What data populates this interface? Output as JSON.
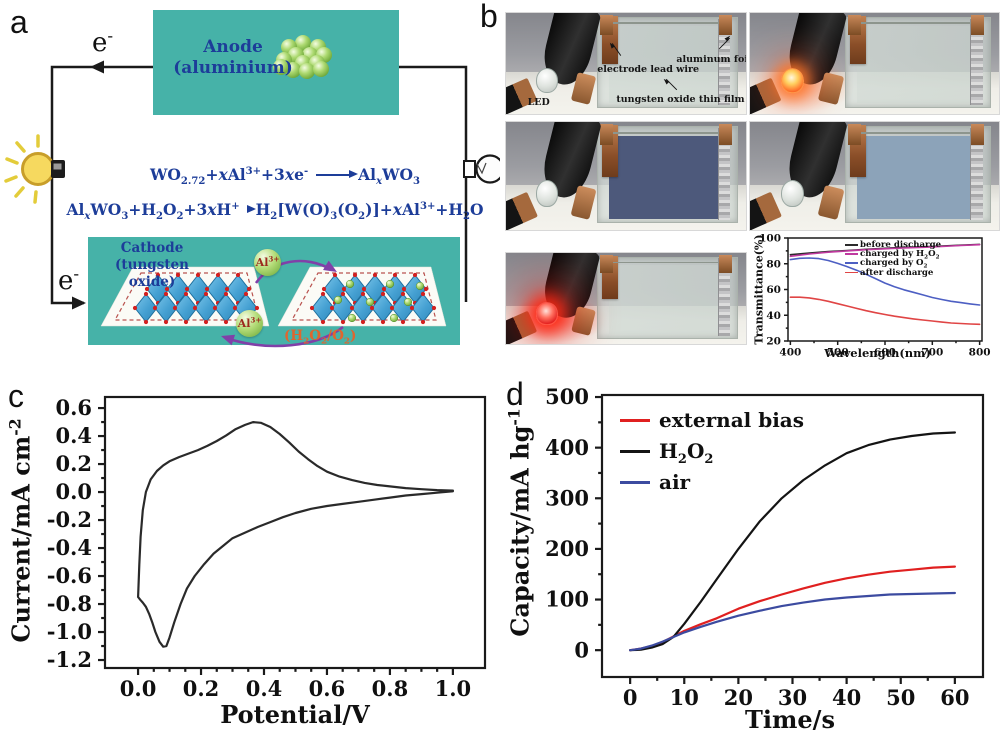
{
  "figure": {
    "panels": {
      "a": "a",
      "b": "b",
      "c": "c",
      "d": "d"
    }
  },
  "panel_a": {
    "electron_top": "e<sup>-</sup>",
    "electron_bottom": "e<sup>-</sup>",
    "anode_line1": "Anode",
    "anode_line2": "(aluminium)",
    "eq1_lhs": "WO<sub>2.72</sub>+<i>x</i>Al<sup>3+</sup>+3<i>x</i>e<sup>-</sup>",
    "eq1_rhs": "Al<sub><i>x</i></sub>WO<sub>3</sub>",
    "eq2_lhs": "Al<sub><i>x</i></sub>WO<sub>3</sub>+H<sub>2</sub>O<sub>2</sub>+3<i>x</i>H<sup>+</sup>",
    "eq2_rhs": "H<sub>2</sub>[W(O)<sub>3</sub>(O<sub>2</sub>)]+<i>x</i>Al<sup>3+</sup>+H<sub>2</sub>O",
    "cathode_line1": "Cathode",
    "cathode_line2": "(tungsten oxide)",
    "al_ion": "Al<sup>3+</sup>",
    "redox_couple": "(H<sub>2</sub>O<sub>2</sub>/O<sub>2</sub>)",
    "colors": {
      "box_teal": "#46b2a8",
      "text_blue": "#1d3d99",
      "arrow_purple": "#8040a8",
      "redox_orange": "#e0662e"
    }
  },
  "panel_b": {
    "photos": [
      {
        "name": "device initial, LED off",
        "led": "off",
        "film": "rgba(198,212,205,0.28)",
        "labels": {
          "led": "LED",
          "lead_wire": "electrode lead wire",
          "foil": "aluminum foil",
          "film": "tungsten oxide thin film"
        }
      },
      {
        "name": "device discharging, LED lit orange",
        "led": "orange",
        "film": "rgba(198,212,205,0.25)"
      },
      {
        "name": "device charged dark blue",
        "led": "off",
        "film": "#4d597b"
      },
      {
        "name": "device charged light blue",
        "led": "off",
        "film": "#8ca3b9"
      },
      {
        "name": "device after discharge, LED lit red",
        "led": "red",
        "film": "rgba(205,216,210,0.3)"
      }
    ]
  },
  "chart_data": [
    {
      "id": "transmittance",
      "type": "line",
      "xlabel": "Wavelength(nm)",
      "ylabel": "Transmittance(%)",
      "xlim": [
        395,
        805
      ],
      "ylim": [
        20,
        100
      ],
      "xticks": [
        400,
        500,
        600,
        700,
        800
      ],
      "yticks": [
        20,
        40,
        60,
        80,
        100
      ],
      "xminor": 50,
      "yminor": 10,
      "legend_position": "top-right",
      "series": [
        {
          "name": "before discharge",
          "label_html": "before discharge",
          "color": "#2b2b2b",
          "points": [
            [
              400,
              87
            ],
            [
              440,
              88.3
            ],
            [
              480,
              89.4
            ],
            [
              520,
              90.3
            ],
            [
              560,
              91.2
            ],
            [
              600,
              92
            ],
            [
              640,
              92.7
            ],
            [
              680,
              93.2
            ],
            [
              720,
              93.8
            ],
            [
              760,
              94.4
            ],
            [
              800,
              95
            ]
          ]
        },
        {
          "name": "charged by H2O2",
          "label_html": "charged by H<sub>2</sub>O<sub>2</sub>",
          "color": "#c0399f",
          "points": [
            [
              400,
              85.8
            ],
            [
              440,
              87.6
            ],
            [
              480,
              89
            ],
            [
              520,
              90
            ],
            [
              560,
              90.9
            ],
            [
              600,
              91.6
            ],
            [
              640,
              92.2
            ],
            [
              680,
              92.8
            ],
            [
              720,
              93.4
            ],
            [
              760,
              94.2
            ],
            [
              800,
              94.8
            ]
          ]
        },
        {
          "name": "charged by O2",
          "label_html": "charged by O<sub>2</sub>",
          "color": "#4d5fc3",
          "points": [
            [
              400,
              83.2
            ],
            [
              420,
              84.2
            ],
            [
              440,
              84.5
            ],
            [
              460,
              84
            ],
            [
              480,
              82.5
            ],
            [
              500,
              80.3
            ],
            [
              520,
              77.8
            ],
            [
              540,
              75
            ],
            [
              560,
              71.8
            ],
            [
              580,
              68.5
            ],
            [
              600,
              65
            ],
            [
              620,
              62.2
            ],
            [
              640,
              59.8
            ],
            [
              660,
              57.8
            ],
            [
              680,
              55.8
            ],
            [
              700,
              53.8
            ],
            [
              720,
              52.2
            ],
            [
              740,
              50.8
            ],
            [
              760,
              49.8
            ],
            [
              780,
              48.8
            ],
            [
              800,
              48
            ]
          ]
        },
        {
          "name": "after discharge",
          "label_html": "after discharge",
          "color": "#e04545",
          "points": [
            [
              400,
              54
            ],
            [
              420,
              54
            ],
            [
              440,
              53.5
            ],
            [
              460,
              52.3
            ],
            [
              480,
              50.8
            ],
            [
              500,
              49
            ],
            [
              520,
              47.2
            ],
            [
              540,
              45.3
            ],
            [
              560,
              43.5
            ],
            [
              580,
              42
            ],
            [
              600,
              40.6
            ],
            [
              620,
              39.3
            ],
            [
              640,
              38.2
            ],
            [
              660,
              37.2
            ],
            [
              680,
              36.3
            ],
            [
              700,
              35.5
            ],
            [
              720,
              34.7
            ],
            [
              740,
              34
            ],
            [
              760,
              33.6
            ],
            [
              780,
              33.2
            ],
            [
              800,
              33
            ]
          ]
        }
      ]
    },
    {
      "id": "cv",
      "type": "line",
      "xlabel": "Potential/V",
      "ylabel_html": "Current/mA cm<sup>-2</sup>",
      "xlim": [
        -0.105,
        1.102
      ],
      "ylim": [
        -1.257,
        0.679
      ],
      "xticks": [
        0.0,
        0.2,
        0.4,
        0.6,
        0.8,
        1.0
      ],
      "xtick_labels": [
        "0.0",
        "0.2",
        "0.4",
        "0.6",
        "0.8",
        "1.0"
      ],
      "yticks": [
        0.6,
        0.4,
        0.2,
        0.0,
        -0.2,
        -0.4,
        -0.6,
        -0.8,
        -1.0,
        -1.2
      ],
      "ytick_labels": [
        "0.6",
        "0.4",
        "0.2",
        "0.0",
        "-0.2",
        "-0.4",
        "-0.6",
        "-0.8",
        "-1.0",
        "-1.2"
      ],
      "xminor": 0.05,
      "yminor": 0.1,
      "series": [
        {
          "name": "cyclic voltammogram",
          "color": "#2a2a2a",
          "points": [
            [
              0.0,
              -0.75
            ],
            [
              0.004,
              -0.52
            ],
            [
              0.008,
              -0.32
            ],
            [
              0.015,
              -0.13
            ],
            [
              0.025,
              0.0
            ],
            [
              0.04,
              0.09
            ],
            [
              0.06,
              0.15
            ],
            [
              0.08,
              0.19
            ],
            [
              0.1,
              0.22
            ],
            [
              0.13,
              0.25
            ],
            [
              0.16,
              0.275
            ],
            [
              0.19,
              0.3
            ],
            [
              0.22,
              0.33
            ],
            [
              0.25,
              0.365
            ],
            [
              0.28,
              0.405
            ],
            [
              0.31,
              0.45
            ],
            [
              0.34,
              0.48
            ],
            [
              0.365,
              0.5
            ],
            [
              0.39,
              0.495
            ],
            [
              0.42,
              0.465
            ],
            [
              0.45,
              0.415
            ],
            [
              0.48,
              0.355
            ],
            [
              0.51,
              0.29
            ],
            [
              0.54,
              0.235
            ],
            [
              0.57,
              0.185
            ],
            [
              0.6,
              0.145
            ],
            [
              0.64,
              0.11
            ],
            [
              0.68,
              0.085
            ],
            [
              0.72,
              0.065
            ],
            [
              0.76,
              0.05
            ],
            [
              0.8,
              0.04
            ],
            [
              0.85,
              0.028
            ],
            [
              0.9,
              0.02
            ],
            [
              0.95,
              0.014
            ],
            [
              1.0,
              0.01
            ],
            [
              1.0,
              0.005
            ],
            [
              0.95,
              -0.005
            ],
            [
              0.9,
              -0.015
            ],
            [
              0.85,
              -0.025
            ],
            [
              0.8,
              -0.04
            ],
            [
              0.75,
              -0.055
            ],
            [
              0.7,
              -0.07
            ],
            [
              0.65,
              -0.085
            ],
            [
              0.6,
              -0.1
            ],
            [
              0.55,
              -0.12
            ],
            [
              0.5,
              -0.15
            ],
            [
              0.46,
              -0.18
            ],
            [
              0.42,
              -0.215
            ],
            [
              0.38,
              -0.25
            ],
            [
              0.34,
              -0.29
            ],
            [
              0.3,
              -0.33
            ],
            [
              0.27,
              -0.385
            ],
            [
              0.24,
              -0.44
            ],
            [
              0.21,
              -0.515
            ],
            [
              0.18,
              -0.6
            ],
            [
              0.155,
              -0.69
            ],
            [
              0.135,
              -0.8
            ],
            [
              0.115,
              -0.93
            ],
            [
              0.1,
              -1.04
            ],
            [
              0.09,
              -1.1
            ],
            [
              0.08,
              -1.105
            ],
            [
              0.068,
              -1.07
            ],
            [
              0.055,
              -1.0
            ],
            [
              0.045,
              -0.93
            ],
            [
              0.035,
              -0.87
            ],
            [
              0.025,
              -0.82
            ],
            [
              0.015,
              -0.79
            ],
            [
              0.007,
              -0.77
            ],
            [
              0.0,
              -0.75
            ]
          ]
        }
      ]
    },
    {
      "id": "capacity",
      "type": "line",
      "xlabel": "Time/s",
      "ylabel_html": "Capacity/mA hg<sup>-1</sup>",
      "xlim": [
        -5.2,
        65.2
      ],
      "ylim": [
        -53,
        504
      ],
      "xticks": [
        0,
        10,
        20,
        30,
        40,
        50,
        60
      ],
      "yticks": [
        0,
        100,
        200,
        300,
        400,
        500
      ],
      "xminor": 5,
      "yminor": 50,
      "legend_position": "top-left",
      "series": [
        {
          "name": "external bias",
          "label_html": "external bias",
          "color": "#e02020",
          "points": [
            [
              0,
              0
            ],
            [
              2,
              3
            ],
            [
              4,
              8
            ],
            [
              6,
              16
            ],
            [
              8,
              27
            ],
            [
              10,
              38
            ],
            [
              13,
              51
            ],
            [
              16,
              63
            ],
            [
              20,
              82
            ],
            [
              24,
              97
            ],
            [
              28,
              110
            ],
            [
              32,
              122
            ],
            [
              36,
              133
            ],
            [
              40,
              142
            ],
            [
              44,
              149
            ],
            [
              48,
              155
            ],
            [
              52,
              159
            ],
            [
              56,
              163
            ],
            [
              60,
              165
            ]
          ]
        },
        {
          "name": "H2O2",
          "label_html": "H<sub>2</sub>O<sub>2</sub>",
          "color": "#141414",
          "points": [
            [
              0,
              0
            ],
            [
              2,
              1
            ],
            [
              4,
              5
            ],
            [
              6,
              12
            ],
            [
              8,
              26
            ],
            [
              10,
              52
            ],
            [
              13,
              95
            ],
            [
              16,
              140
            ],
            [
              20,
              200
            ],
            [
              24,
              255
            ],
            [
              28,
              300
            ],
            [
              32,
              336
            ],
            [
              36,
              365
            ],
            [
              40,
              389
            ],
            [
              44,
              405
            ],
            [
              48,
              416
            ],
            [
              52,
              423
            ],
            [
              56,
              428
            ],
            [
              60,
              430
            ]
          ]
        },
        {
          "name": "air",
          "label_html": "air",
          "color": "#3c4ba0",
          "points": [
            [
              0,
              0
            ],
            [
              2,
              3
            ],
            [
              4,
              9
            ],
            [
              6,
              17
            ],
            [
              8,
              26
            ],
            [
              10,
              35
            ],
            [
              13,
              46
            ],
            [
              16,
              56
            ],
            [
              20,
              68
            ],
            [
              24,
              78
            ],
            [
              28,
              87
            ],
            [
              32,
              94
            ],
            [
              36,
              100
            ],
            [
              40,
              104
            ],
            [
              44,
              107
            ],
            [
              48,
              110
            ],
            [
              52,
              111
            ],
            [
              56,
              112
            ],
            [
              60,
              113
            ]
          ]
        }
      ]
    }
  ]
}
